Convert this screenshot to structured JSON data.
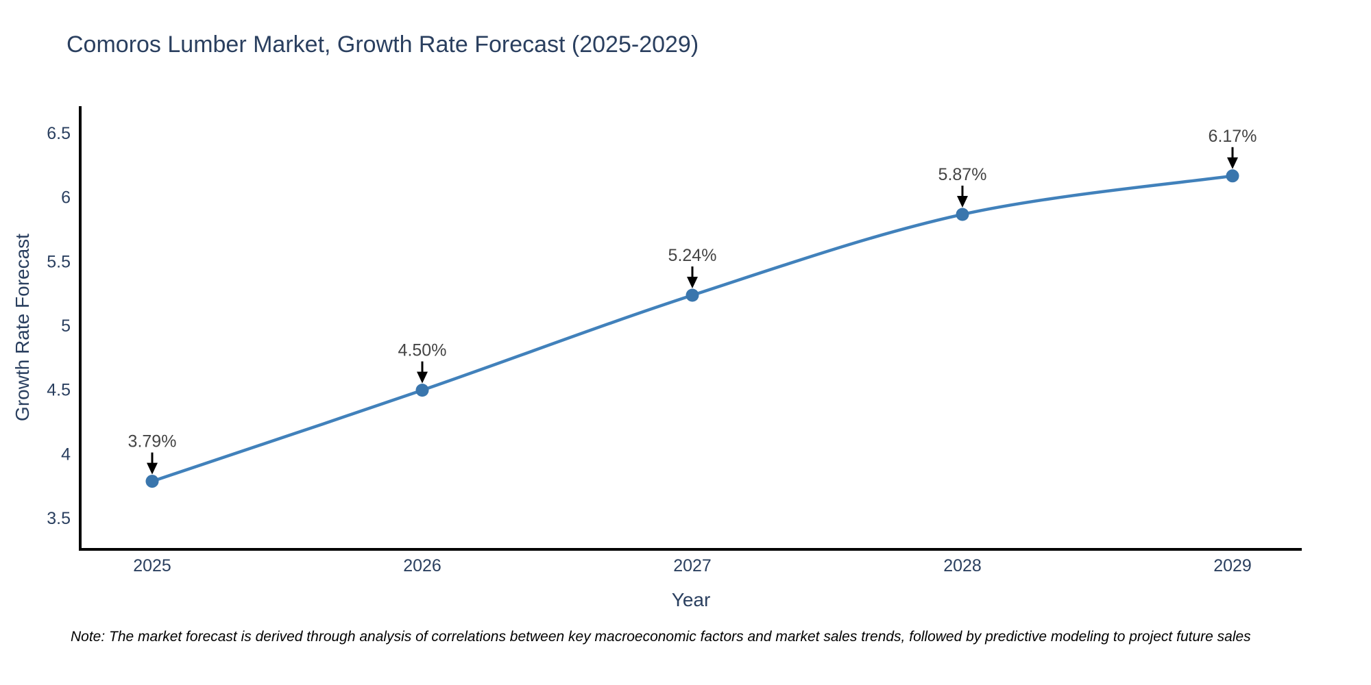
{
  "chart_data": {
    "type": "line",
    "title": "Comoros Lumber Market, Growth Rate Forecast (2025-2029)",
    "xlabel": "Year",
    "ylabel": "Growth Rate Forecast",
    "categories": [
      "2025",
      "2026",
      "2027",
      "2028",
      "2029"
    ],
    "series": [
      {
        "name": "Growth Rate Forecast",
        "values": [
          3.79,
          4.5,
          5.24,
          5.87,
          6.17
        ],
        "point_labels": [
          "3.79%",
          "4.50%",
          "5.24%",
          "5.87%",
          "6.17%"
        ]
      }
    ],
    "yticks": [
      6.5,
      6,
      5.5,
      5,
      4.5,
      4,
      3.5
    ],
    "ylim": [
      3.26,
      6.71
    ],
    "grid": false,
    "legend": false,
    "line_shape": "spline",
    "colors": {
      "line": "#4181bb",
      "marker": "#3a76ad",
      "axis_line": "#000000",
      "tick_text": "#2a3f5f",
      "annotation_text": "#444444",
      "annotation_arrow": "#000000"
    },
    "note": "Note: The market forecast is derived through analysis of correlations between key macroeconomic factors and market sales trends, followed by predictive modeling to project future sales"
  }
}
